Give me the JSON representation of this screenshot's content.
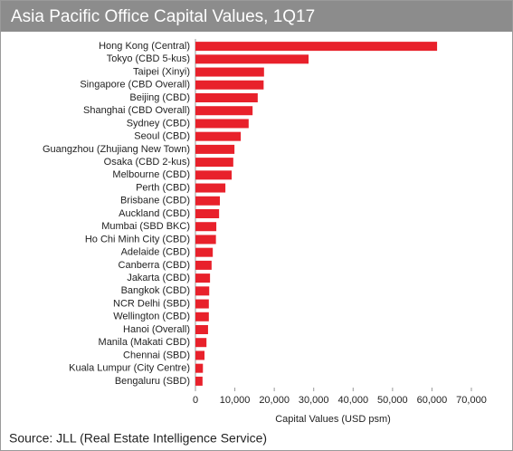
{
  "chart_data": {
    "type": "hbar",
    "title": "Asia Pacific Office Capital Values, 1Q17",
    "categories": [
      "Hong Kong (Central)",
      "Tokyo (CBD 5-kus)",
      "Taipei (Xinyi)",
      "Singapore (CBD Overall)",
      "Beijing (CBD)",
      "Shanghai (CBD Overall)",
      "Sydney (CBD)",
      "Seoul (CBD)",
      "Guangzhou (Zhujiang New Town)",
      "Osaka (CBD 2-kus)",
      "Melbourne (CBD)",
      "Perth (CBD)",
      "Brisbane (CBD)",
      "Auckland (CBD)",
      "Mumbai (SBD BKC)",
      "Ho Chi Minh City (CBD)",
      "Adelaide (CBD)",
      "Canberra (CBD)",
      "Jakarta (CBD)",
      "Bangkok (CBD)",
      "NCR Delhi (SBD)",
      "Wellington (CBD)",
      "Hanoi (Overall)",
      "Manila (Makati CBD)",
      "Chennai (SBD)",
      "Kuala Lumpur (City Centre)",
      "Bengaluru (SBD)"
    ],
    "values": [
      61300,
      28700,
      17400,
      17300,
      15800,
      14500,
      13500,
      11500,
      9900,
      9600,
      9200,
      7600,
      6200,
      6000,
      5300,
      5200,
      4400,
      4100,
      3700,
      3500,
      3400,
      3400,
      3200,
      2800,
      2300,
      1900,
      1800
    ],
    "color": "#e8212b",
    "xlabel": "Capital Values (USD psm)",
    "xlim": [
      0,
      70000
    ],
    "xticks": [
      0,
      {
        "value": 10000,
        "label": "10,000"
      },
      {
        "value": 20000,
        "label": "20,000"
      },
      {
        "value": 30000,
        "label": "30,000"
      },
      {
        "value": 40000,
        "label": "40,000"
      },
      {
        "value": 50000,
        "label": "50,000"
      },
      {
        "value": 60000,
        "label": "60,000"
      },
      {
        "value": 70000,
        "label": "70,000"
      }
    ],
    "source": "Source: JLL (Real Estate Intelligence Service)"
  }
}
